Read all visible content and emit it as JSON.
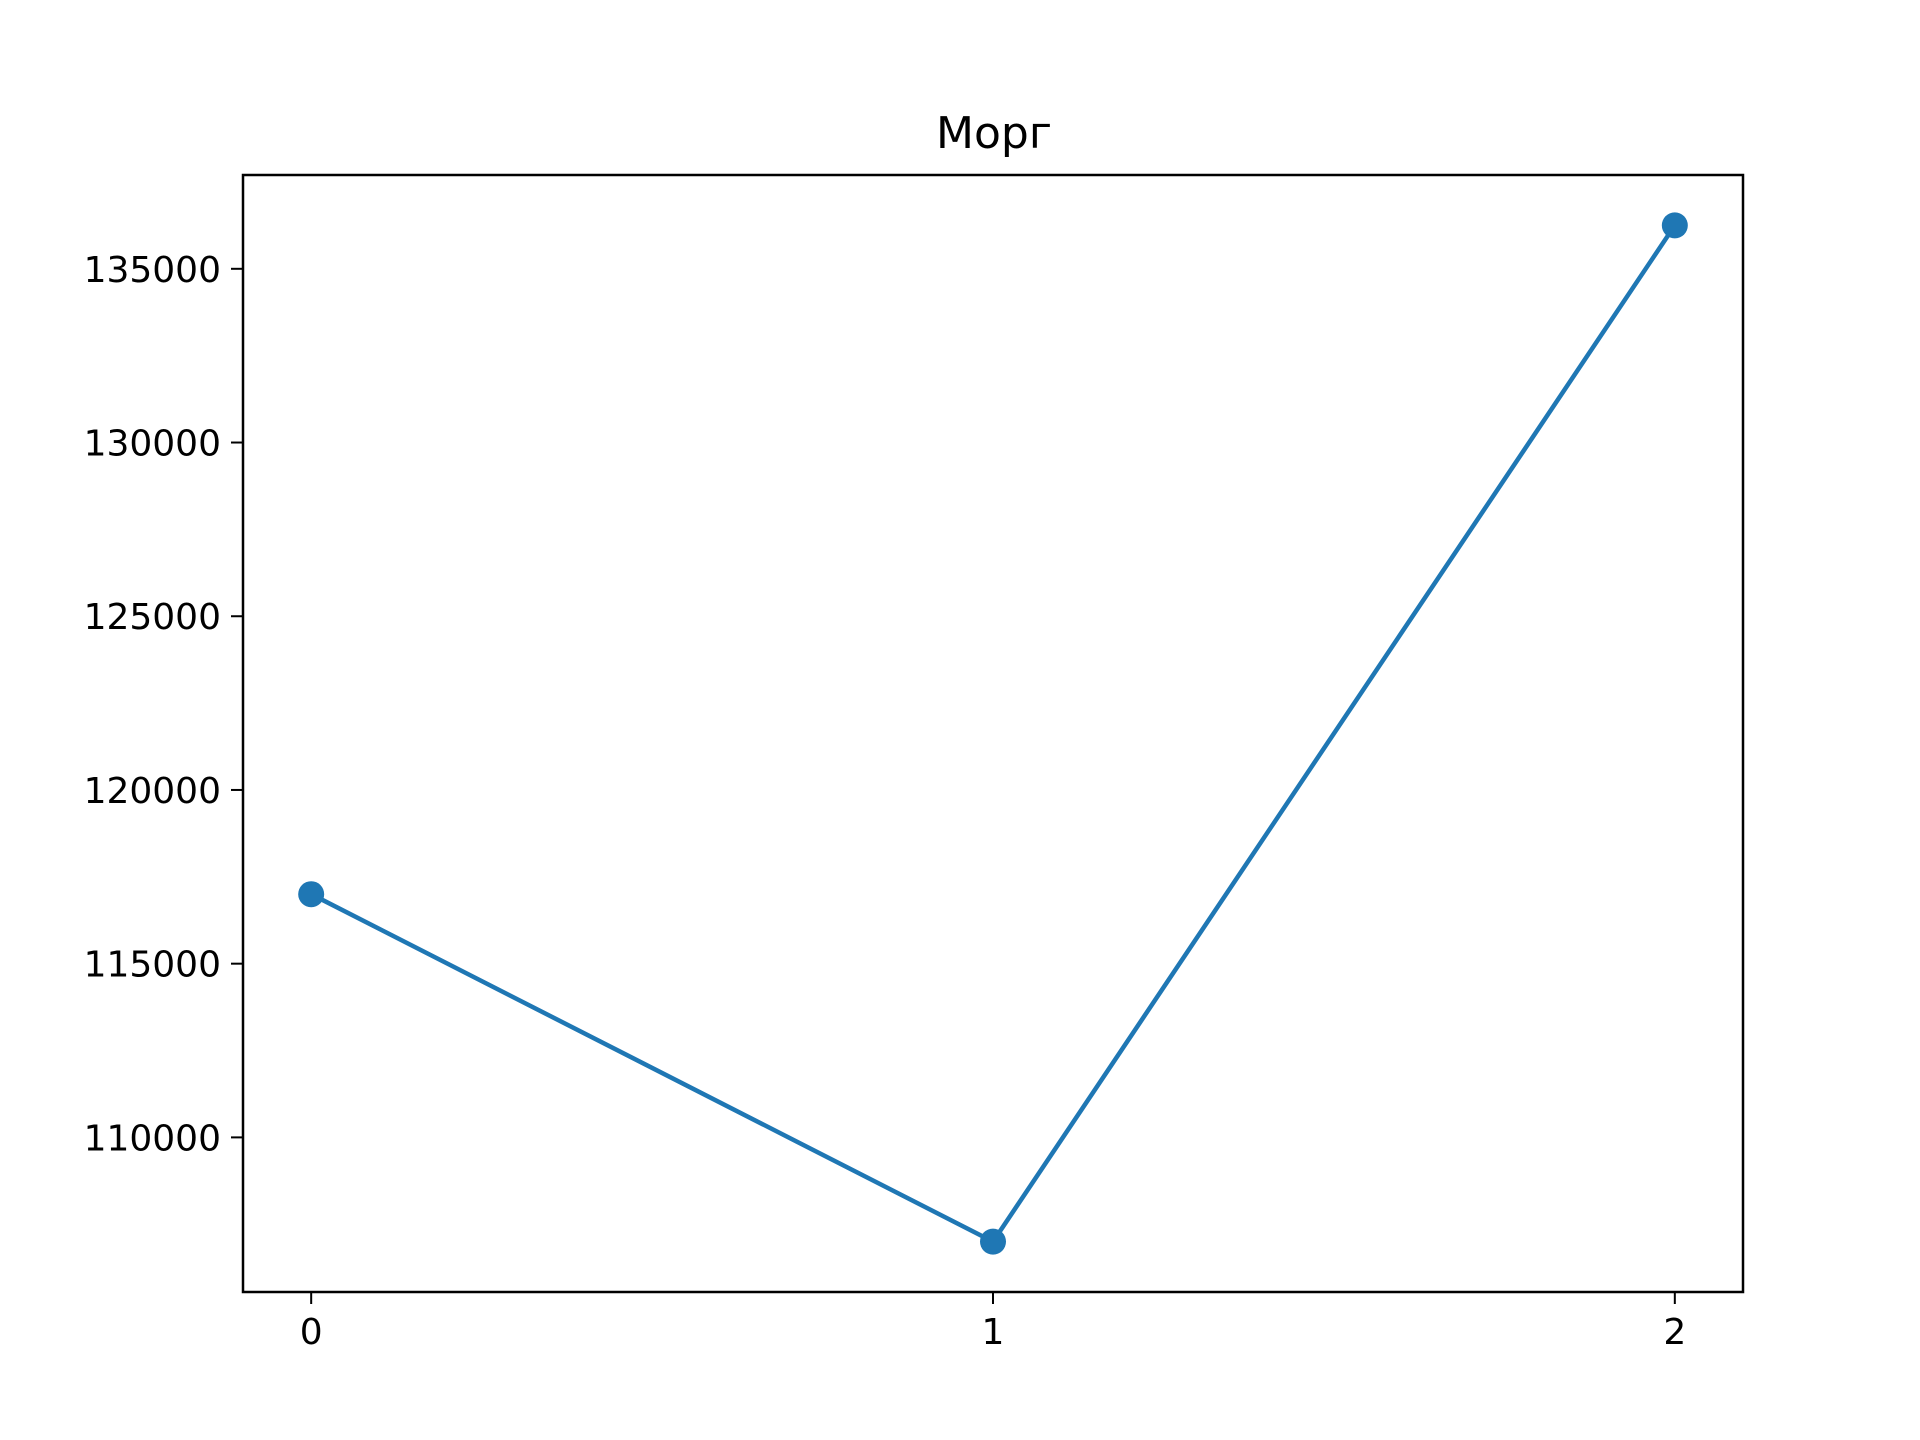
{
  "chart_data": {
    "type": "line",
    "title": "Морг",
    "xlabel": "",
    "ylabel": "",
    "x": [
      0,
      1,
      2
    ],
    "x_tick_labels": [
      "0",
      "1",
      "2"
    ],
    "series": [
      {
        "values": [
          117000,
          107000,
          136250
        ],
        "color": "#1f77b4",
        "marker": "circle"
      }
    ],
    "xlim": [
      -0.1,
      2.1
    ],
    "ylim": [
      105550,
      137700
    ],
    "y_ticks": [
      110000,
      115000,
      120000,
      125000,
      130000,
      135000
    ],
    "y_tick_labels": [
      "110000",
      "115000",
      "120000",
      "125000",
      "130000",
      "135000"
    ],
    "grid": false,
    "legend": "none"
  }
}
